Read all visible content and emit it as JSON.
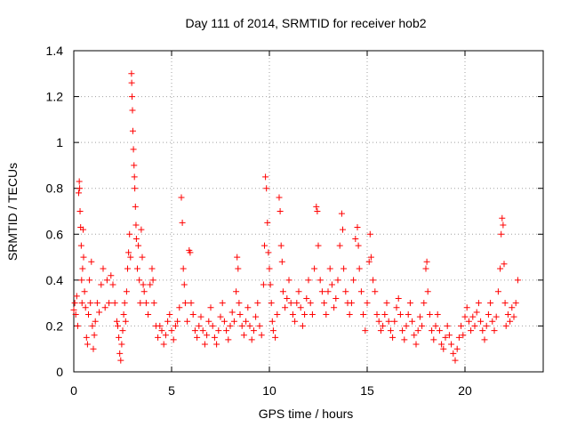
{
  "chart_data": {
    "type": "scatter",
    "title": "Day 111 of 2014, SRMTID for receiver hob2",
    "xlabel": "GPS time / hours",
    "ylabel": "SRMTID / TECUs",
    "xlim": [
      0,
      24
    ],
    "ylim": [
      0,
      1.4
    ],
    "xticks": [
      0,
      5,
      10,
      15,
      20
    ],
    "xtick_labels": [
      "0",
      "5",
      "10",
      "15",
      "20"
    ],
    "yticks": [
      0,
      0.2,
      0.4,
      0.6,
      0.8,
      1.0,
      1.2,
      1.4
    ],
    "ytick_labels": [
      "0",
      "0.2",
      "0.4",
      "0.6",
      "0.8",
      "1",
      "1.2",
      "1.4"
    ],
    "grid": true,
    "marker": "plus",
    "color": "#ff0000",
    "series": [
      {
        "name": "SRMTID",
        "points": [
          [
            0.0,
            0.27
          ],
          [
            0.05,
            0.3
          ],
          [
            0.1,
            0.25
          ],
          [
            0.15,
            0.33
          ],
          [
            0.2,
            0.2
          ],
          [
            0.25,
            0.78
          ],
          [
            0.28,
            0.83
          ],
          [
            0.3,
            0.8
          ],
          [
            0.32,
            0.7
          ],
          [
            0.35,
            0.63
          ],
          [
            0.38,
            0.55
          ],
          [
            0.4,
            0.4
          ],
          [
            0.42,
            0.3
          ],
          [
            0.45,
            0.45
          ],
          [
            0.48,
            0.62
          ],
          [
            0.5,
            0.5
          ],
          [
            0.55,
            0.35
          ],
          [
            0.6,
            0.28
          ],
          [
            0.65,
            0.15
          ],
          [
            0.7,
            0.12
          ],
          [
            0.75,
            0.25
          ],
          [
            0.8,
            0.4
          ],
          [
            0.85,
            0.3
          ],
          [
            0.9,
            0.48
          ],
          [
            0.95,
            0.2
          ],
          [
            1.0,
            0.1
          ],
          [
            1.05,
            0.16
          ],
          [
            1.1,
            0.22
          ],
          [
            1.2,
            0.3
          ],
          [
            1.3,
            0.26
          ],
          [
            1.4,
            0.38
          ],
          [
            1.5,
            0.45
          ],
          [
            1.6,
            0.28
          ],
          [
            1.7,
            0.4
          ],
          [
            1.8,
            0.3
          ],
          [
            1.9,
            0.42
          ],
          [
            2.0,
            0.38
          ],
          [
            2.1,
            0.3
          ],
          [
            2.2,
            0.22
          ],
          [
            2.25,
            0.2
          ],
          [
            2.3,
            0.15
          ],
          [
            2.35,
            0.08
          ],
          [
            2.4,
            0.05
          ],
          [
            2.45,
            0.12
          ],
          [
            2.5,
            0.18
          ],
          [
            2.55,
            0.25
          ],
          [
            2.6,
            0.3
          ],
          [
            2.65,
            0.22
          ],
          [
            2.7,
            0.35
          ],
          [
            2.75,
            0.45
          ],
          [
            2.8,
            0.52
          ],
          [
            2.85,
            0.6
          ],
          [
            2.9,
            0.5
          ],
          [
            2.95,
            1.3
          ],
          [
            2.96,
            1.26
          ],
          [
            2.98,
            1.2
          ],
          [
            3.0,
            1.14
          ],
          [
            3.02,
            1.05
          ],
          [
            3.05,
            0.97
          ],
          [
            3.08,
            0.9
          ],
          [
            3.1,
            0.85
          ],
          [
            3.12,
            0.8
          ],
          [
            3.15,
            0.72
          ],
          [
            3.18,
            0.64
          ],
          [
            3.2,
            0.58
          ],
          [
            3.25,
            0.45
          ],
          [
            3.3,
            0.55
          ],
          [
            3.35,
            0.4
          ],
          [
            3.4,
            0.3
          ],
          [
            3.45,
            0.62
          ],
          [
            3.5,
            0.5
          ],
          [
            3.55,
            0.38
          ],
          [
            3.6,
            0.35
          ],
          [
            3.7,
            0.3
          ],
          [
            3.8,
            0.25
          ],
          [
            3.9,
            0.38
          ],
          [
            4.0,
            0.45
          ],
          [
            4.05,
            0.4
          ],
          [
            4.1,
            0.3
          ],
          [
            4.2,
            0.2
          ],
          [
            4.3,
            0.15
          ],
          [
            4.4,
            0.2
          ],
          [
            4.5,
            0.18
          ],
          [
            4.6,
            0.12
          ],
          [
            4.7,
            0.16
          ],
          [
            4.8,
            0.22
          ],
          [
            4.9,
            0.25
          ],
          [
            5.0,
            0.18
          ],
          [
            5.1,
            0.14
          ],
          [
            5.2,
            0.2
          ],
          [
            5.3,
            0.22
          ],
          [
            5.4,
            0.28
          ],
          [
            5.5,
            0.76
          ],
          [
            5.55,
            0.65
          ],
          [
            5.6,
            0.45
          ],
          [
            5.65,
            0.38
          ],
          [
            5.7,
            0.3
          ],
          [
            5.8,
            0.22
          ],
          [
            5.9,
            0.53
          ],
          [
            5.95,
            0.52
          ],
          [
            6.0,
            0.3
          ],
          [
            6.1,
            0.25
          ],
          [
            6.2,
            0.18
          ],
          [
            6.3,
            0.15
          ],
          [
            6.4,
            0.2
          ],
          [
            6.5,
            0.24
          ],
          [
            6.6,
            0.18
          ],
          [
            6.7,
            0.12
          ],
          [
            6.8,
            0.16
          ],
          [
            6.9,
            0.22
          ],
          [
            7.0,
            0.28
          ],
          [
            7.1,
            0.2
          ],
          [
            7.2,
            0.15
          ],
          [
            7.3,
            0.12
          ],
          [
            7.4,
            0.18
          ],
          [
            7.5,
            0.24
          ],
          [
            7.6,
            0.3
          ],
          [
            7.7,
            0.22
          ],
          [
            7.8,
            0.18
          ],
          [
            7.9,
            0.14
          ],
          [
            8.0,
            0.2
          ],
          [
            8.1,
            0.26
          ],
          [
            8.2,
            0.22
          ],
          [
            8.3,
            0.35
          ],
          [
            8.35,
            0.5
          ],
          [
            8.4,
            0.45
          ],
          [
            8.45,
            0.3
          ],
          [
            8.5,
            0.25
          ],
          [
            8.6,
            0.2
          ],
          [
            8.7,
            0.16
          ],
          [
            8.8,
            0.22
          ],
          [
            8.9,
            0.28
          ],
          [
            9.0,
            0.2
          ],
          [
            9.1,
            0.14
          ],
          [
            9.2,
            0.18
          ],
          [
            9.3,
            0.24
          ],
          [
            9.4,
            0.3
          ],
          [
            9.5,
            0.2
          ],
          [
            9.6,
            0.16
          ],
          [
            9.7,
            0.38
          ],
          [
            9.75,
            0.55
          ],
          [
            9.8,
            0.85
          ],
          [
            9.85,
            0.8
          ],
          [
            9.9,
            0.65
          ],
          [
            9.95,
            0.52
          ],
          [
            10.0,
            0.45
          ],
          [
            10.05,
            0.38
          ],
          [
            10.1,
            0.3
          ],
          [
            10.15,
            0.22
          ],
          [
            10.2,
            0.18
          ],
          [
            10.3,
            0.15
          ],
          [
            10.4,
            0.25
          ],
          [
            10.5,
            0.76
          ],
          [
            10.55,
            0.7
          ],
          [
            10.6,
            0.55
          ],
          [
            10.65,
            0.48
          ],
          [
            10.7,
            0.35
          ],
          [
            10.8,
            0.28
          ],
          [
            10.9,
            0.32
          ],
          [
            11.0,
            0.4
          ],
          [
            11.1,
            0.3
          ],
          [
            11.2,
            0.25
          ],
          [
            11.3,
            0.22
          ],
          [
            11.4,
            0.3
          ],
          [
            11.5,
            0.35
          ],
          [
            11.6,
            0.28
          ],
          [
            11.7,
            0.2
          ],
          [
            11.8,
            0.25
          ],
          [
            11.9,
            0.32
          ],
          [
            12.0,
            0.4
          ],
          [
            12.1,
            0.3
          ],
          [
            12.2,
            0.25
          ],
          [
            12.3,
            0.45
          ],
          [
            12.4,
            0.72
          ],
          [
            12.45,
            0.7
          ],
          [
            12.5,
            0.55
          ],
          [
            12.6,
            0.4
          ],
          [
            12.7,
            0.35
          ],
          [
            12.8,
            0.3
          ],
          [
            12.9,
            0.25
          ],
          [
            13.0,
            0.35
          ],
          [
            13.1,
            0.45
          ],
          [
            13.2,
            0.38
          ],
          [
            13.3,
            0.28
          ],
          [
            13.4,
            0.32
          ],
          [
            13.5,
            0.4
          ],
          [
            13.6,
            0.55
          ],
          [
            13.7,
            0.69
          ],
          [
            13.75,
            0.62
          ],
          [
            13.8,
            0.45
          ],
          [
            13.9,
            0.35
          ],
          [
            14.0,
            0.3
          ],
          [
            14.1,
            0.25
          ],
          [
            14.2,
            0.3
          ],
          [
            14.3,
            0.4
          ],
          [
            14.4,
            0.58
          ],
          [
            14.5,
            0.63
          ],
          [
            14.55,
            0.55
          ],
          [
            14.6,
            0.45
          ],
          [
            14.7,
            0.35
          ],
          [
            14.8,
            0.25
          ],
          [
            14.9,
            0.18
          ],
          [
            15.0,
            0.3
          ],
          [
            15.1,
            0.48
          ],
          [
            15.15,
            0.6
          ],
          [
            15.2,
            0.5
          ],
          [
            15.3,
            0.4
          ],
          [
            15.4,
            0.35
          ],
          [
            15.5,
            0.25
          ],
          [
            15.6,
            0.22
          ],
          [
            15.7,
            0.18
          ],
          [
            15.8,
            0.2
          ],
          [
            15.9,
            0.25
          ],
          [
            16.0,
            0.3
          ],
          [
            16.1,
            0.22
          ],
          [
            16.2,
            0.18
          ],
          [
            16.3,
            0.15
          ],
          [
            16.4,
            0.22
          ],
          [
            16.5,
            0.28
          ],
          [
            16.6,
            0.32
          ],
          [
            16.7,
            0.25
          ],
          [
            16.8,
            0.18
          ],
          [
            16.9,
            0.14
          ],
          [
            17.0,
            0.2
          ],
          [
            17.1,
            0.25
          ],
          [
            17.2,
            0.3
          ],
          [
            17.3,
            0.22
          ],
          [
            17.4,
            0.16
          ],
          [
            17.5,
            0.12
          ],
          [
            17.6,
            0.18
          ],
          [
            17.7,
            0.24
          ],
          [
            17.8,
            0.2
          ],
          [
            17.9,
            0.3
          ],
          [
            18.0,
            0.45
          ],
          [
            18.05,
            0.48
          ],
          [
            18.1,
            0.35
          ],
          [
            18.2,
            0.25
          ],
          [
            18.3,
            0.18
          ],
          [
            18.4,
            0.14
          ],
          [
            18.5,
            0.2
          ],
          [
            18.6,
            0.25
          ],
          [
            18.7,
            0.18
          ],
          [
            18.8,
            0.12
          ],
          [
            18.9,
            0.1
          ],
          [
            19.0,
            0.15
          ],
          [
            19.1,
            0.2
          ],
          [
            19.2,
            0.16
          ],
          [
            19.3,
            0.12
          ],
          [
            19.4,
            0.08
          ],
          [
            19.5,
            0.05
          ],
          [
            19.6,
            0.1
          ],
          [
            19.7,
            0.15
          ],
          [
            19.8,
            0.2
          ],
          [
            19.9,
            0.16
          ],
          [
            20.0,
            0.24
          ],
          [
            20.1,
            0.28
          ],
          [
            20.2,
            0.22
          ],
          [
            20.3,
            0.18
          ],
          [
            20.4,
            0.24
          ],
          [
            20.5,
            0.2
          ],
          [
            20.6,
            0.26
          ],
          [
            20.7,
            0.3
          ],
          [
            20.8,
            0.22
          ],
          [
            20.9,
            0.18
          ],
          [
            21.0,
            0.14
          ],
          [
            21.1,
            0.2
          ],
          [
            21.2,
            0.25
          ],
          [
            21.3,
            0.3
          ],
          [
            21.4,
            0.22
          ],
          [
            21.5,
            0.18
          ],
          [
            21.6,
            0.24
          ],
          [
            21.7,
            0.35
          ],
          [
            21.8,
            0.45
          ],
          [
            21.85,
            0.6
          ],
          [
            21.9,
            0.67
          ],
          [
            21.95,
            0.64
          ],
          [
            22.0,
            0.47
          ],
          [
            22.05,
            0.3
          ],
          [
            22.1,
            0.2
          ],
          [
            22.2,
            0.25
          ],
          [
            22.3,
            0.22
          ],
          [
            22.4,
            0.28
          ],
          [
            22.5,
            0.24
          ],
          [
            22.6,
            0.3
          ],
          [
            22.7,
            0.4
          ]
        ]
      }
    ]
  }
}
